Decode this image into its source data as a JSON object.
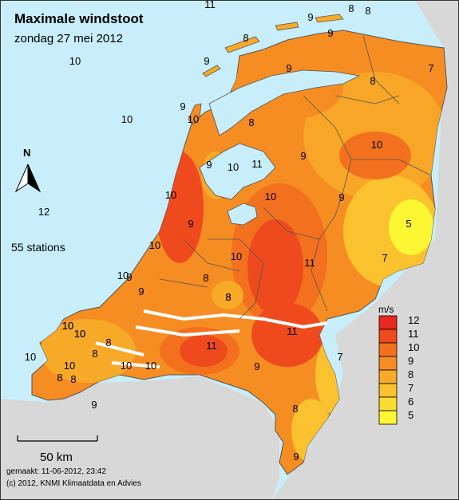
{
  "title": "Maximale windstoot",
  "subtitle": "zondag 27 mei 2012",
  "stations_label": "55 stations",
  "scale_label": "50 km",
  "north_label": "N",
  "footer_made": "gemaakt: 11-06-2012, 23:42",
  "footer_copyright": "(c) 2012, KNMI Klimaatdata en Advies",
  "legend": {
    "unit": "m/s",
    "levels": [
      {
        "label": "12",
        "color": "#e8281e"
      },
      {
        "label": "11",
        "color": "#ee4a1e"
      },
      {
        "label": "10",
        "color": "#f2701e"
      },
      {
        "label": "9",
        "color": "#f58d22"
      },
      {
        "label": "8",
        "color": "#f7a928"
      },
      {
        "label": "7",
        "color": "#f9c22e"
      },
      {
        "label": "6",
        "color": "#fbdc30"
      },
      {
        "label": "5",
        "color": "#fdf632"
      }
    ]
  },
  "colors": {
    "sea": "#c8eefb",
    "land_outside": "#d8d8d8",
    "base_land": "#f58d22",
    "water_inland": "#ffffff"
  },
  "station_values": [
    "11",
    "8",
    "8",
    "9",
    "9",
    "8",
    "7",
    "8",
    "9",
    "10",
    "9",
    "9",
    "10",
    "10",
    "8",
    "10",
    "9",
    "10",
    "11",
    "9",
    "10",
    "10",
    "9",
    "5",
    "10",
    "7",
    "11",
    "9",
    "10",
    "9",
    "8",
    "12",
    "11",
    "10",
    "10",
    "10",
    "8",
    "8",
    "10",
    "11",
    "9",
    "10",
    "8",
    "8",
    "8",
    "10",
    "7",
    "9",
    "8",
    "9",
    "10",
    "9",
    "8",
    "10",
    "10"
  ]
}
